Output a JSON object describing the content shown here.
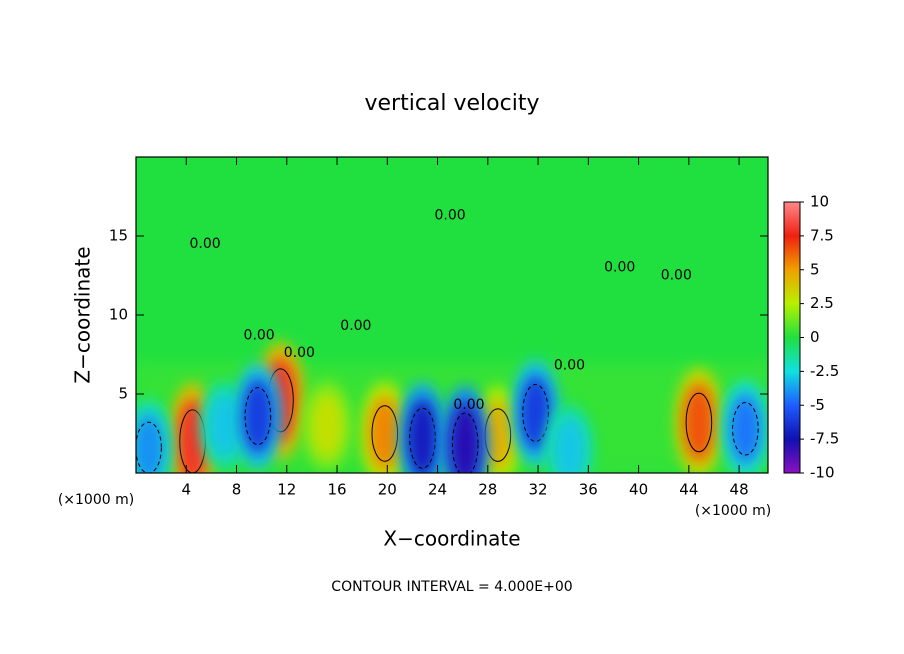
{
  "chart_data": {
    "type": "contour",
    "title": "vertical velocity",
    "xlabel": "X−coordinate",
    "ylabel": "Z−coordinate",
    "x_unit": "(×1000 m)",
    "x_unit_right": "(×1000 m)",
    "footer": "CONTOUR INTERVAL = 4.000E+00",
    "xlim": [
      0,
      50.3
    ],
    "ylim": [
      0,
      20
    ],
    "xticks": [
      4,
      8,
      12,
      16,
      20,
      24,
      28,
      32,
      36,
      40,
      44,
      48
    ],
    "yticks": [
      5,
      10,
      15
    ],
    "colorbar": {
      "lim": [
        -10,
        10
      ],
      "ticks": [
        -10,
        -7.5,
        -5,
        -2.5,
        0,
        2.5,
        5,
        7.5,
        10
      ],
      "colors": [
        "#8a10c0",
        "#1010b0",
        "#1e5cff",
        "#10e0e0",
        "#20e040",
        "#b8f000",
        "#f0a000",
        "#f02010",
        "#ff8888"
      ]
    },
    "peaks": [
      {
        "x": 4.5,
        "z": 2.0,
        "value": 8
      },
      {
        "x": 11.5,
        "z": 4.6,
        "value": 8
      },
      {
        "x": 19.8,
        "z": 2.5,
        "value": 5.5
      },
      {
        "x": 28.8,
        "z": 2.4,
        "value": 4.5
      },
      {
        "x": 44.8,
        "z": 3.2,
        "value": 6.5
      },
      {
        "x": 15.2,
        "z": 3.0,
        "value": 3
      },
      {
        "x": 1.0,
        "z": 1.6,
        "value": -4
      },
      {
        "x": 7.0,
        "z": 3.0,
        "value": -3
      },
      {
        "x": 9.7,
        "z": 3.6,
        "value": -6
      },
      {
        "x": 22.8,
        "z": 2.2,
        "value": -7
      },
      {
        "x": 26.2,
        "z": 1.8,
        "value": -8
      },
      {
        "x": 31.8,
        "z": 3.8,
        "value": -6
      },
      {
        "x": 34.5,
        "z": 1.5,
        "value": -3
      },
      {
        "x": 48.5,
        "z": 2.8,
        "value": -4.5
      }
    ],
    "contour_labels": [
      {
        "x": 25.0,
        "z": 16.3,
        "label": "0.00"
      },
      {
        "x": 5.5,
        "z": 14.5,
        "label": "0.00"
      },
      {
        "x": 43.0,
        "z": 12.5,
        "label": "0.00"
      },
      {
        "x": 38.5,
        "z": 13.0,
        "label": "0.00"
      },
      {
        "x": 17.5,
        "z": 9.3,
        "label": "0.00"
      },
      {
        "x": 9.8,
        "z": 8.7,
        "label": "0.00"
      },
      {
        "x": 13.0,
        "z": 7.6,
        "label": "0.00"
      },
      {
        "x": 34.5,
        "z": 6.8,
        "label": "0.00"
      },
      {
        "x": 26.5,
        "z": 4.3,
        "label": "0.00"
      }
    ]
  }
}
